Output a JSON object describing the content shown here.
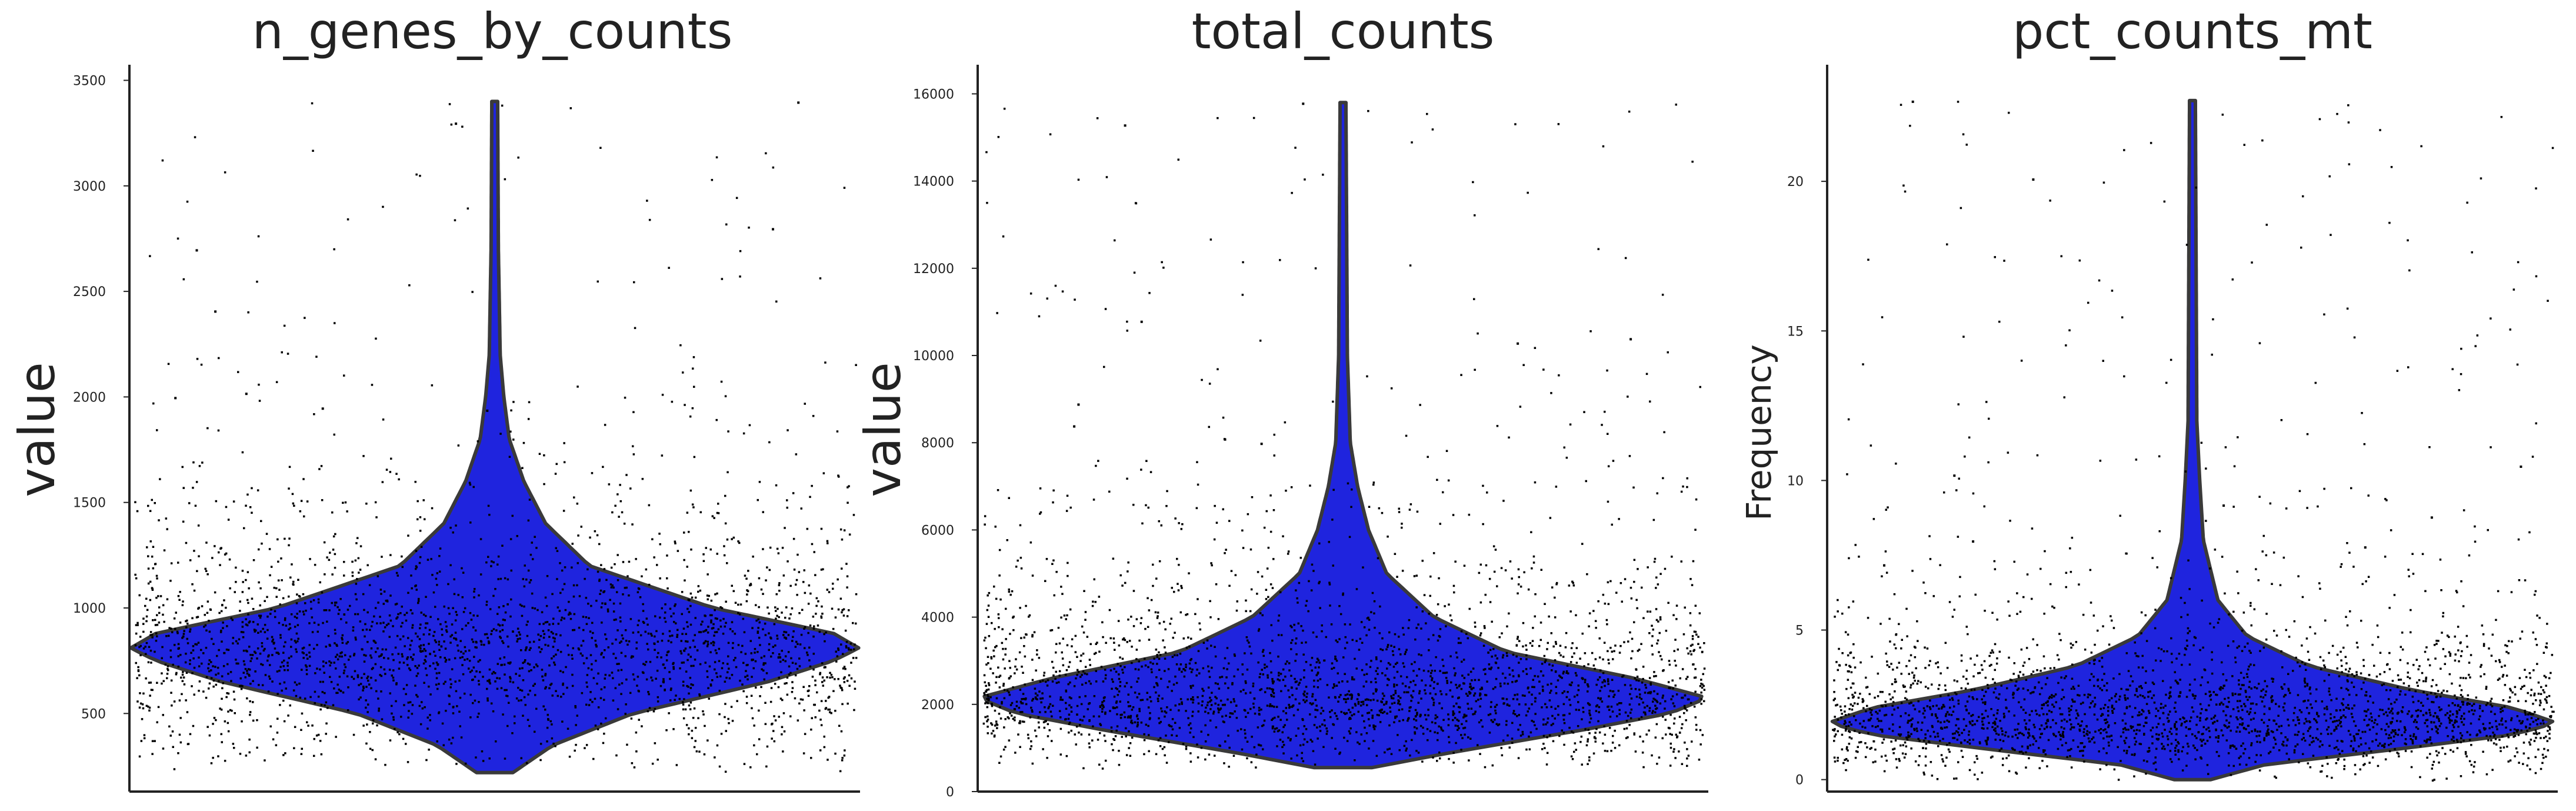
{
  "colors": {
    "violin_fill": "#1f24de",
    "violin_edge": "#3a3a3a",
    "points": "#000000",
    "axes": "#222222",
    "background": "#ffffff"
  },
  "chart_data": [
    {
      "type": "violin",
      "title": "n_genes_by_counts",
      "ylabel": "value",
      "xlabel": "",
      "ylim": [
        130,
        3560
      ],
      "yticks": [
        500,
        1000,
        1500,
        2000,
        2500,
        3000,
        3500
      ],
      "grid": false,
      "legend": "none",
      "density_profile": [
        [
          220,
          0.05
        ],
        [
          350,
          0.16
        ],
        [
          500,
          0.38
        ],
        [
          650,
          0.75
        ],
        [
          750,
          0.93
        ],
        [
          810,
          1.0
        ],
        [
          880,
          0.93
        ],
        [
          1000,
          0.6
        ],
        [
          1200,
          0.26
        ],
        [
          1400,
          0.14
        ],
        [
          1600,
          0.08
        ],
        [
          1800,
          0.04
        ],
        [
          2000,
          0.025
        ],
        [
          2200,
          0.015
        ],
        [
          2700,
          0.01
        ],
        [
          3400,
          0.008
        ]
      ],
      "distribution": {
        "median": 820,
        "iqr": [
          640,
          1060
        ],
        "min": 220,
        "max": 3400
      },
      "outliers": [
        3400,
        3300,
        2800,
        2700,
        2410,
        2000,
        1950,
        1940,
        2020
      ]
    },
    {
      "type": "violin",
      "title": "total_counts",
      "ylabel": "value",
      "xlabel": "",
      "ylim": [
        0,
        16600
      ],
      "yticks": [
        0,
        2000,
        4000,
        6000,
        8000,
        10000,
        12000,
        14000,
        16000
      ],
      "grid": false,
      "legend": "none",
      "density_profile": [
        [
          550,
          0.08
        ],
        [
          900,
          0.3
        ],
        [
          1400,
          0.65
        ],
        [
          1800,
          0.9
        ],
        [
          2150,
          1.0
        ],
        [
          2600,
          0.8
        ],
        [
          3200,
          0.45
        ],
        [
          4000,
          0.25
        ],
        [
          5000,
          0.12
        ],
        [
          6000,
          0.07
        ],
        [
          7000,
          0.04
        ],
        [
          8000,
          0.02
        ],
        [
          10000,
          0.012
        ],
        [
          15800,
          0.008
        ]
      ],
      "distribution": {
        "median": 2150,
        "iqr": [
          1600,
          2900
        ],
        "min": 550,
        "max": 15800
      },
      "outliers": [
        15800,
        15300,
        10800,
        10300,
        10400,
        8400,
        8900,
        8000,
        8100
      ]
    },
    {
      "type": "violin",
      "title": "pct_counts_mt",
      "ylabel": "Frequency",
      "xlabel": "",
      "ylim": [
        -0.4,
        23.8
      ],
      "yticks": [
        0,
        5,
        10,
        15,
        20
      ],
      "grid": false,
      "legend": "none",
      "density_profile": [
        [
          0.0,
          0.05
        ],
        [
          0.5,
          0.2
        ],
        [
          1.0,
          0.55
        ],
        [
          1.5,
          0.88
        ],
        [
          1.9,
          1.0
        ],
        [
          2.4,
          0.88
        ],
        [
          3.0,
          0.6
        ],
        [
          3.8,
          0.32
        ],
        [
          4.8,
          0.15
        ],
        [
          6.0,
          0.07
        ],
        [
          8.0,
          0.03
        ],
        [
          10.0,
          0.02
        ],
        [
          12.0,
          0.012
        ],
        [
          22.7,
          0.008
        ]
      ],
      "distribution": {
        "median": 1.9,
        "iqr": [
          1.4,
          2.6
        ],
        "min": 0.0,
        "max": 22.7
      },
      "outliers": [
        22.7,
        20.1,
        10.5,
        10.2,
        9.2,
        8.8,
        8.0,
        7.8,
        7.2
      ]
    }
  ]
}
